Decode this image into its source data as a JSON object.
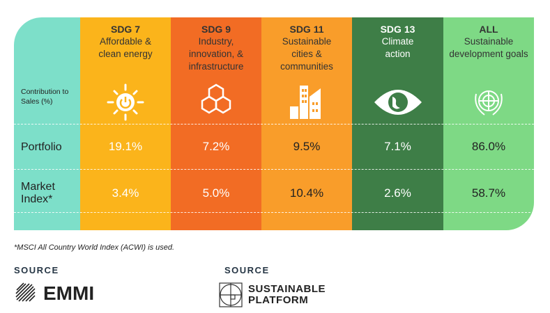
{
  "table": {
    "row_header": "Contribution to Sales (%)",
    "rows": [
      "Portfolio",
      "Market Index*"
    ],
    "columns": [
      {
        "code": "SDG 7",
        "desc": "Affordable & clean energy",
        "portfolio": "19.1%",
        "market": "3.4%",
        "color": "#fbb41b",
        "icon": "sun-power-icon"
      },
      {
        "code": "SDG 9",
        "desc": "Industry, innovation, & infrastructure",
        "portfolio": "7.2%",
        "market": "5.0%",
        "color": "#f26c24",
        "icon": "cubes-icon"
      },
      {
        "code": "SDG 11",
        "desc": "Sustainable cities & communities",
        "portfolio": "9.5%",
        "market": "10.4%",
        "color": "#f99d2a",
        "icon": "city-buildings-icon"
      },
      {
        "code": "SDG 13",
        "desc": "Climate action",
        "portfolio": "7.1%",
        "market": "2.6%",
        "color": "#3e7e47",
        "icon": "earth-eye-icon"
      },
      {
        "code": "ALL",
        "desc": "Sustainable development goals",
        "portfolio": "86.0%",
        "market": "58.7%",
        "color": "#7ed985",
        "icon": "un-emblem-icon"
      }
    ]
  },
  "footnote": "*MSCI All Country World Index (ACWI) is used.",
  "sources": [
    {
      "label": "SOURCE",
      "logo_text": "EMMI"
    },
    {
      "label": "SOURCE",
      "logo_text_1": "SUSTAINABLE",
      "logo_text_2": "PLATFORM"
    }
  ]
}
